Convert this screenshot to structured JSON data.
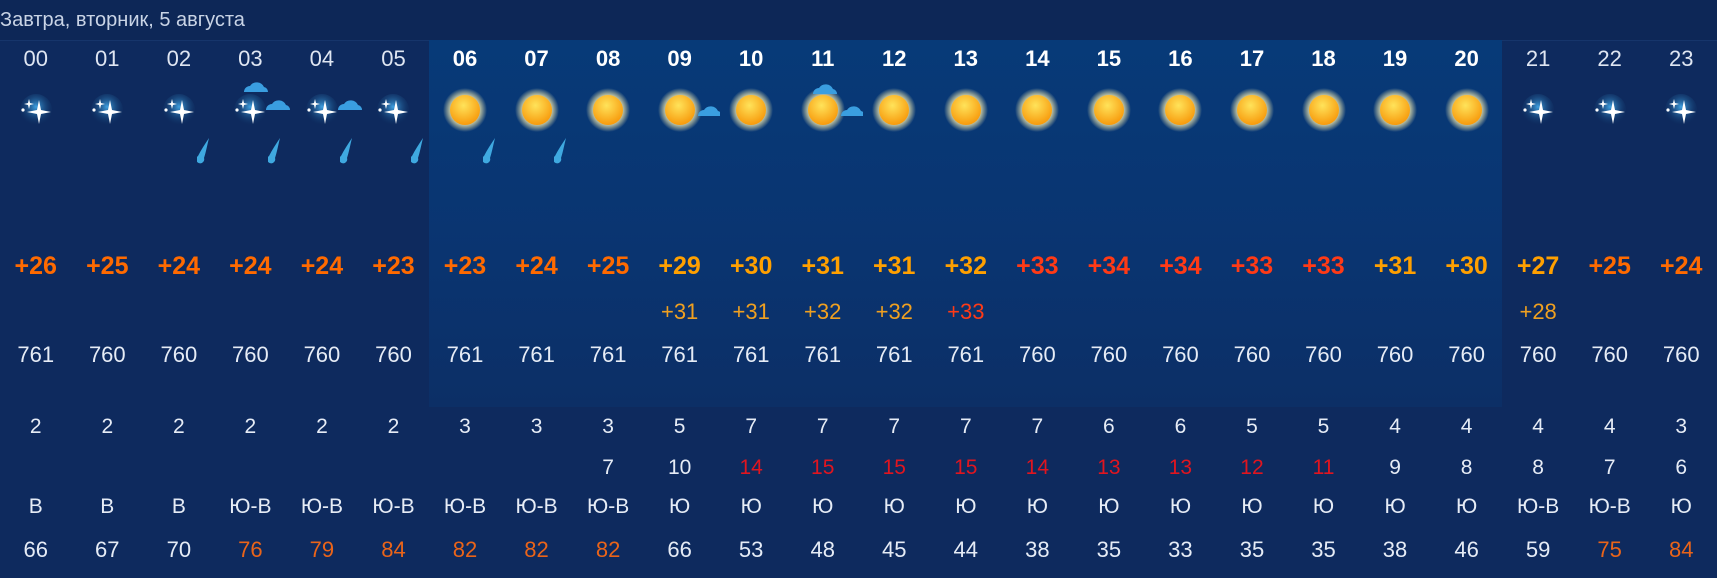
{
  "title": "Завтра, вторник, 5 августа",
  "colors": {
    "background": "#0e2a5e",
    "day_band": "#073a78",
    "temp_warm": "#ff6a00",
    "temp_hot": "#ffa000",
    "temp_very_hot": "#ff3a16",
    "feels_warm": "#f0a020",
    "feels_hot": "#ff3a16",
    "gust_strong": "#e0151f",
    "humidity_high": "#ea6419",
    "rain_drop": "#3fa9e0"
  },
  "hours": [
    {
      "hour": "00",
      "icon": "night-clear-icon",
      "rain": false,
      "temp": "+26",
      "temp_level": "warm",
      "feels": "",
      "feels_level": "",
      "pressure": "761",
      "wind": "2",
      "gust": "",
      "gust_strong": false,
      "dir": "В",
      "humidity": "66",
      "humidity_high": false,
      "day": false
    },
    {
      "hour": "01",
      "icon": "night-clear-icon",
      "rain": false,
      "temp": "+25",
      "temp_level": "warm",
      "feels": "",
      "feels_level": "",
      "pressure": "760",
      "wind": "2",
      "gust": "",
      "gust_strong": false,
      "dir": "В",
      "humidity": "67",
      "humidity_high": false,
      "day": false
    },
    {
      "hour": "02",
      "icon": "night-clear-icon",
      "rain": true,
      "temp": "+24",
      "temp_level": "warm",
      "feels": "",
      "feels_level": "",
      "pressure": "760",
      "wind": "2",
      "gust": "",
      "gust_strong": false,
      "dir": "В",
      "humidity": "70",
      "humidity_high": false,
      "day": false
    },
    {
      "hour": "03",
      "icon": "night-cloudy-icon",
      "rain": true,
      "temp": "+24",
      "temp_level": "warm",
      "feels": "",
      "feels_level": "",
      "pressure": "760",
      "wind": "2",
      "gust": "",
      "gust_strong": false,
      "dir": "Ю-В",
      "humidity": "76",
      "humidity_high": true,
      "day": false
    },
    {
      "hour": "04",
      "icon": "night-partly-cloudy-icon",
      "rain": true,
      "temp": "+24",
      "temp_level": "warm",
      "feels": "",
      "feels_level": "",
      "pressure": "760",
      "wind": "2",
      "gust": "",
      "gust_strong": false,
      "dir": "Ю-В",
      "humidity": "79",
      "humidity_high": true,
      "day": false
    },
    {
      "hour": "05",
      "icon": "night-clear-icon",
      "rain": true,
      "temp": "+23",
      "temp_level": "warm",
      "feels": "",
      "feels_level": "",
      "pressure": "760",
      "wind": "2",
      "gust": "",
      "gust_strong": false,
      "dir": "Ю-В",
      "humidity": "84",
      "humidity_high": true,
      "day": false
    },
    {
      "hour": "06",
      "icon": "sun-icon",
      "rain": true,
      "temp": "+23",
      "temp_level": "warm",
      "feels": "",
      "feels_level": "",
      "pressure": "761",
      "wind": "3",
      "gust": "",
      "gust_strong": false,
      "dir": "Ю-В",
      "humidity": "82",
      "humidity_high": true,
      "day": true
    },
    {
      "hour": "07",
      "icon": "sun-icon",
      "rain": true,
      "temp": "+24",
      "temp_level": "warm",
      "feels": "",
      "feels_level": "",
      "pressure": "761",
      "wind": "3",
      "gust": "",
      "gust_strong": false,
      "dir": "Ю-В",
      "humidity": "82",
      "humidity_high": true,
      "day": true
    },
    {
      "hour": "08",
      "icon": "sun-icon",
      "rain": false,
      "temp": "+25",
      "temp_level": "warm",
      "feels": "",
      "feels_level": "",
      "pressure": "761",
      "wind": "3",
      "gust": "7",
      "gust_strong": false,
      "dir": "Ю-В",
      "humidity": "82",
      "humidity_high": true,
      "day": true
    },
    {
      "hour": "09",
      "icon": "sun-small-cloud-icon",
      "rain": false,
      "temp": "+29",
      "temp_level": "hot",
      "feels": "+31",
      "feels_level": "warm",
      "pressure": "761",
      "wind": "5",
      "gust": "10",
      "gust_strong": false,
      "dir": "Ю",
      "humidity": "66",
      "humidity_high": false,
      "day": true
    },
    {
      "hour": "10",
      "icon": "sun-icon",
      "rain": false,
      "temp": "+30",
      "temp_level": "hot",
      "feels": "+31",
      "feels_level": "warm",
      "pressure": "761",
      "wind": "7",
      "gust": "14",
      "gust_strong": true,
      "dir": "Ю",
      "humidity": "53",
      "humidity_high": false,
      "day": true
    },
    {
      "hour": "11",
      "icon": "sun-clouds-icon",
      "rain": false,
      "temp": "+31",
      "temp_level": "hot",
      "feels": "+32",
      "feels_level": "warm",
      "pressure": "761",
      "wind": "7",
      "gust": "15",
      "gust_strong": true,
      "dir": "Ю",
      "humidity": "48",
      "humidity_high": false,
      "day": true
    },
    {
      "hour": "12",
      "icon": "sun-icon",
      "rain": false,
      "temp": "+31",
      "temp_level": "hot",
      "feels": "+32",
      "feels_level": "warm",
      "pressure": "761",
      "wind": "7",
      "gust": "15",
      "gust_strong": true,
      "dir": "Ю",
      "humidity": "45",
      "humidity_high": false,
      "day": true
    },
    {
      "hour": "13",
      "icon": "sun-icon",
      "rain": false,
      "temp": "+32",
      "temp_level": "hot",
      "feels": "+33",
      "feels_level": "hot",
      "pressure": "761",
      "wind": "7",
      "gust": "15",
      "gust_strong": true,
      "dir": "Ю",
      "humidity": "44",
      "humidity_high": false,
      "day": true
    },
    {
      "hour": "14",
      "icon": "sun-icon",
      "rain": false,
      "temp": "+33",
      "temp_level": "very_hot",
      "feels": "",
      "feels_level": "",
      "pressure": "760",
      "wind": "7",
      "gust": "14",
      "gust_strong": true,
      "dir": "Ю",
      "humidity": "38",
      "humidity_high": false,
      "day": true
    },
    {
      "hour": "15",
      "icon": "sun-icon",
      "rain": false,
      "temp": "+34",
      "temp_level": "very_hot",
      "feels": "",
      "feels_level": "",
      "pressure": "760",
      "wind": "6",
      "gust": "13",
      "gust_strong": true,
      "dir": "Ю",
      "humidity": "35",
      "humidity_high": false,
      "day": true
    },
    {
      "hour": "16",
      "icon": "sun-icon",
      "rain": false,
      "temp": "+34",
      "temp_level": "very_hot",
      "feels": "",
      "feels_level": "",
      "pressure": "760",
      "wind": "6",
      "gust": "13",
      "gust_strong": true,
      "dir": "Ю",
      "humidity": "33",
      "humidity_high": false,
      "day": true
    },
    {
      "hour": "17",
      "icon": "sun-icon",
      "rain": false,
      "temp": "+33",
      "temp_level": "very_hot",
      "feels": "",
      "feels_level": "",
      "pressure": "760",
      "wind": "5",
      "gust": "12",
      "gust_strong": true,
      "dir": "Ю",
      "humidity": "35",
      "humidity_high": false,
      "day": true
    },
    {
      "hour": "18",
      "icon": "sun-icon",
      "rain": false,
      "temp": "+33",
      "temp_level": "very_hot",
      "feels": "",
      "feels_level": "",
      "pressure": "760",
      "wind": "5",
      "gust": "11",
      "gust_strong": true,
      "dir": "Ю",
      "humidity": "35",
      "humidity_high": false,
      "day": true
    },
    {
      "hour": "19",
      "icon": "sun-icon",
      "rain": false,
      "temp": "+31",
      "temp_level": "hot",
      "feels": "",
      "feels_level": "",
      "pressure": "760",
      "wind": "4",
      "gust": "9",
      "gust_strong": false,
      "dir": "Ю",
      "humidity": "38",
      "humidity_high": false,
      "day": true
    },
    {
      "hour": "20",
      "icon": "sun-icon",
      "rain": false,
      "temp": "+30",
      "temp_level": "hot",
      "feels": "",
      "feels_level": "",
      "pressure": "760",
      "wind": "4",
      "gust": "8",
      "gust_strong": false,
      "dir": "Ю",
      "humidity": "46",
      "humidity_high": false,
      "day": true
    },
    {
      "hour": "21",
      "icon": "night-clear-icon",
      "rain": false,
      "temp": "+27",
      "temp_level": "hot",
      "feels": "+28",
      "feels_level": "warm",
      "pressure": "760",
      "wind": "4",
      "gust": "8",
      "gust_strong": false,
      "dir": "Ю-В",
      "humidity": "59",
      "humidity_high": false,
      "day": false
    },
    {
      "hour": "22",
      "icon": "night-clear-icon",
      "rain": false,
      "temp": "+25",
      "temp_level": "warm",
      "feels": "",
      "feels_level": "",
      "pressure": "760",
      "wind": "4",
      "gust": "7",
      "gust_strong": false,
      "dir": "Ю-В",
      "humidity": "75",
      "humidity_high": true,
      "day": false
    },
    {
      "hour": "23",
      "icon": "night-clear-icon",
      "rain": false,
      "temp": "+24",
      "temp_level": "warm",
      "feels": "",
      "feels_level": "",
      "pressure": "760",
      "wind": "3",
      "gust": "6",
      "gust_strong": false,
      "dir": "Ю",
      "humidity": "84",
      "humidity_high": true,
      "day": false
    }
  ]
}
